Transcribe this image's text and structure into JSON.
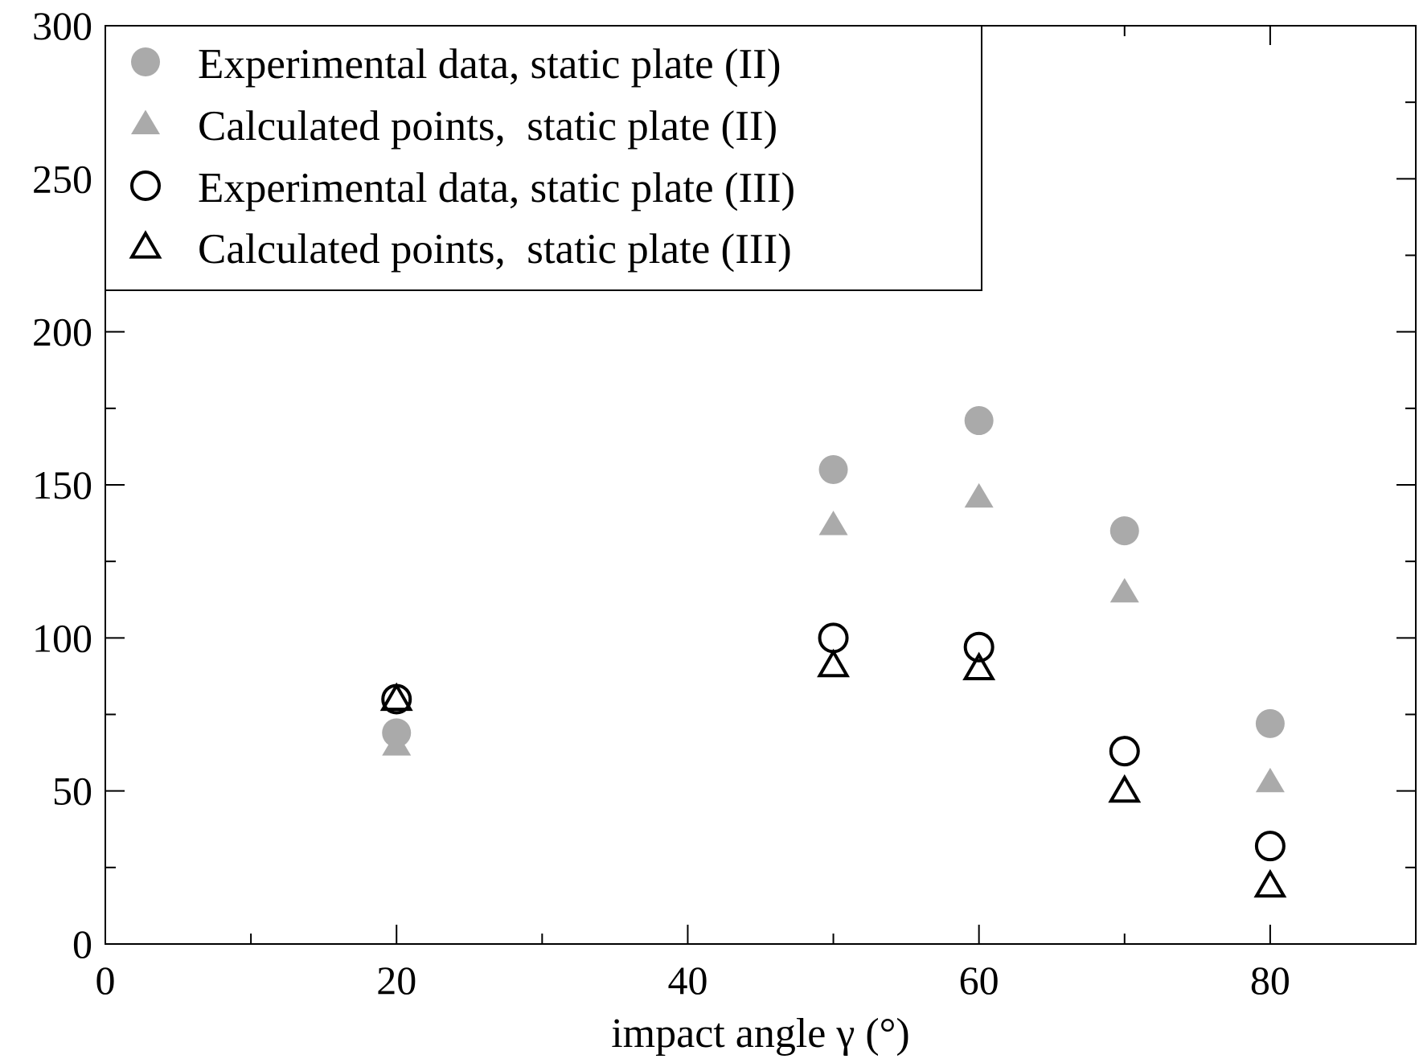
{
  "chart_data": {
    "type": "scatter",
    "title": "",
    "xlabel": "impact angle γ (°)",
    "ylabel": "",
    "xlim": [
      0,
      90
    ],
    "ylim": [
      0,
      300
    ],
    "x_ticks": [
      0,
      20,
      40,
      60,
      80
    ],
    "x_minor_ticks": [
      10,
      30,
      50,
      70,
      90
    ],
    "y_ticks": [
      0,
      50,
      100,
      150,
      200,
      250,
      300
    ],
    "y_minor_ticks": [
      25,
      75,
      125,
      175,
      225,
      275
    ],
    "grid": false,
    "legend_position": "top-left",
    "series": [
      {
        "name": "Experimental data, static plate (II)",
        "marker": "circle",
        "filled": true,
        "color": "#aaaaaa",
        "x": [
          20,
          50,
          60,
          70,
          80
        ],
        "y": [
          69,
          155,
          171,
          135,
          72
        ]
      },
      {
        "name": "Calculated points,  static plate (II)",
        "marker": "triangle",
        "filled": true,
        "color": "#aaaaaa",
        "x": [
          20,
          50,
          60,
          70,
          80
        ],
        "y": [
          65,
          137,
          146,
          115,
          53
        ]
      },
      {
        "name": "Experimental data, static plate (III)",
        "marker": "circle",
        "filled": false,
        "color": "#000000",
        "x": [
          20,
          50,
          60,
          70,
          80
        ],
        "y": [
          80,
          100,
          97,
          63,
          32
        ]
      },
      {
        "name": "Calculated points,  static plate (III)",
        "marker": "triangle",
        "filled": false,
        "color": "#000000",
        "x": [
          20,
          50,
          60,
          70,
          80
        ],
        "y": [
          80,
          91,
          90,
          50,
          19
        ]
      }
    ]
  }
}
